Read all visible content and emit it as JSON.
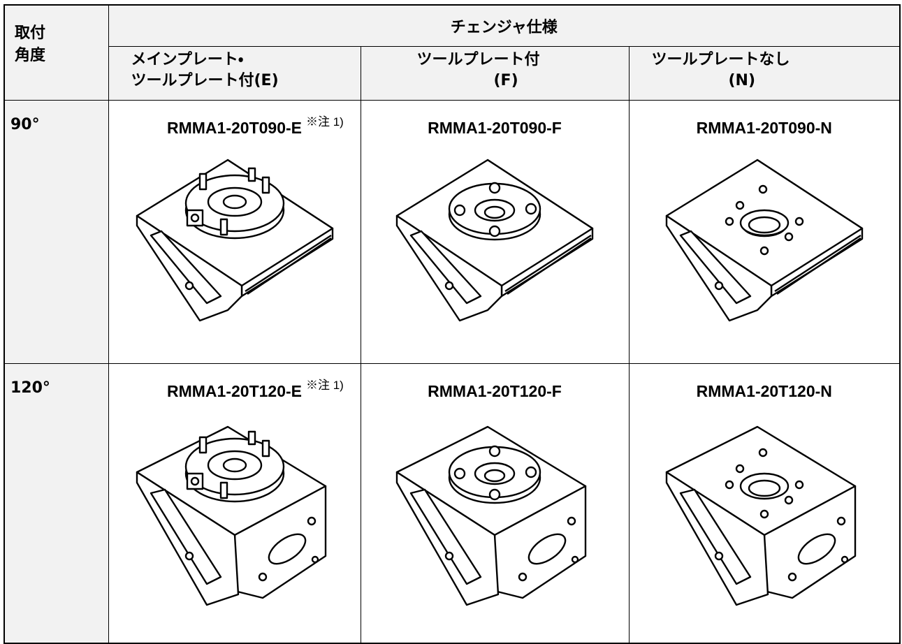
{
  "table": {
    "corner": [
      "取付",
      "角度"
    ],
    "group_header": "チェンジャ仕様",
    "columns": [
      [
        "メインプレート・",
        "ツールプレート付(E)"
      ],
      [
        "ツールプレート付",
        "(F)"
      ],
      [
        "ツールプレートなし",
        "(N)"
      ]
    ],
    "rows": [
      {
        "angle": "90°",
        "models": [
          "RMMA1-20T090-E",
          "RMMA1-20T090-F",
          "RMMA1-20T090-N"
        ],
        "note": "※注 1)"
      },
      {
        "angle": "120°",
        "models": [
          "RMMA1-20T120-E",
          "RMMA1-20T120-F",
          "RMMA1-20T120-N"
        ],
        "note": "※注 1)"
      }
    ]
  }
}
